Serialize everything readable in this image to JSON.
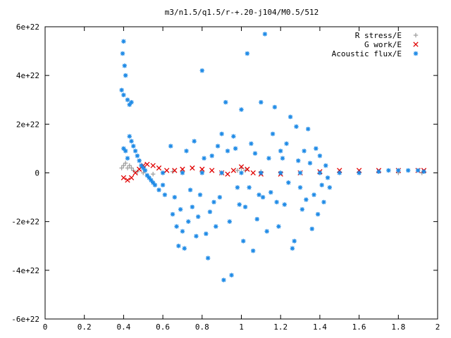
{
  "chart_data": {
    "type": "scatter",
    "title": "m3/n1.5/q1.5/r-+.20-j104/M0.5/512",
    "xlabel": "",
    "ylabel": "",
    "xlim": [
      0,
      2
    ],
    "ylim": [
      -6e+22,
      6e+22
    ],
    "x_ticks": [
      {
        "value": 0,
        "label": "0"
      },
      {
        "value": 0.2,
        "label": "0.2"
      },
      {
        "value": 0.4,
        "label": "0.4"
      },
      {
        "value": 0.6,
        "label": "0.6"
      },
      {
        "value": 0.8,
        "label": "0.8"
      },
      {
        "value": 1.0,
        "label": "1"
      },
      {
        "value": 1.2,
        "label": "1.2"
      },
      {
        "value": 1.4,
        "label": "1.4"
      },
      {
        "value": 1.6,
        "label": "1.6"
      },
      {
        "value": 1.8,
        "label": "1.8"
      },
      {
        "value": 2.0,
        "label": "2"
      }
    ],
    "y_ticks": [
      {
        "value": 6e+22,
        "label": "6e+22"
      },
      {
        "value": 4e+22,
        "label": "4e+22"
      },
      {
        "value": 2e+22,
        "label": "2e+22"
      },
      {
        "value": 0,
        "label": "0"
      },
      {
        "value": -2e+22,
        "label": "-2e+22"
      },
      {
        "value": -4e+22,
        "label": "-4e+22"
      },
      {
        "value": -6e+22,
        "label": "-6e+22"
      }
    ],
    "grid": false,
    "legend_position": "top-right",
    "series": [
      {
        "name": "R stress/E",
        "marker": "+",
        "color": "#a0a0a0",
        "points": [
          [
            0.39,
            2e+21
          ],
          [
            0.4,
            3e+21
          ],
          [
            0.41,
            4e+21
          ],
          [
            0.42,
            2e+21
          ],
          [
            0.43,
            3e+21
          ],
          [
            0.44,
            2e+21
          ],
          [
            0.45,
            1e+21
          ],
          [
            0.47,
            5e+20
          ],
          [
            0.5,
            0.0
          ],
          [
            0.55,
            -5e+20
          ],
          [
            0.6,
            0.0
          ],
          [
            0.65,
            5e+20
          ],
          [
            0.7,
            5e+20
          ],
          [
            0.8,
            5e+20
          ],
          [
            0.9,
            0.0
          ],
          [
            0.98,
            1e+21
          ],
          [
            1.0,
            2e+21
          ],
          [
            1.02,
            1e+21
          ],
          [
            1.1,
            5e+20
          ],
          [
            1.2,
            0.0
          ],
          [
            1.4,
            0.0
          ],
          [
            1.6,
            0.0
          ],
          [
            1.8,
            0.0
          ],
          [
            1.92,
            0.0
          ]
        ]
      },
      {
        "name": "G work/E",
        "marker": "x",
        "color": "#e00000",
        "points": [
          [
            0.4,
            -2e+21
          ],
          [
            0.42,
            -3e+21
          ],
          [
            0.44,
            -2e+21
          ],
          [
            0.46,
            0.0
          ],
          [
            0.48,
            1.5e+21
          ],
          [
            0.5,
            3e+21
          ],
          [
            0.52,
            3.5e+21
          ],
          [
            0.55,
            3e+21
          ],
          [
            0.58,
            2e+21
          ],
          [
            0.62,
            1e+21
          ],
          [
            0.66,
            1e+21
          ],
          [
            0.7,
            1.5e+21
          ],
          [
            0.75,
            2e+21
          ],
          [
            0.8,
            1.5e+21
          ],
          [
            0.85,
            1e+21
          ],
          [
            0.9,
            0.0
          ],
          [
            0.93,
            -5e+20
          ],
          [
            0.96,
            1e+21
          ],
          [
            1.0,
            2.5e+21
          ],
          [
            1.03,
            1.5e+21
          ],
          [
            1.06,
            0.0
          ],
          [
            1.1,
            -5e+20
          ],
          [
            1.2,
            -5e+20
          ],
          [
            1.3,
            0.0
          ],
          [
            1.4,
            5e+20
          ],
          [
            1.5,
            1e+21
          ],
          [
            1.6,
            1e+21
          ],
          [
            1.7,
            1e+21
          ],
          [
            1.8,
            1e+21
          ],
          [
            1.9,
            1e+21
          ],
          [
            1.93,
            1e+21
          ]
        ]
      },
      {
        "name": "Acoustic flux/E",
        "marker": "*",
        "color": "#1e8ae6",
        "points": [
          [
            0.395,
            4.9e+22
          ],
          [
            0.4,
            5.4e+22
          ],
          [
            0.405,
            4.4e+22
          ],
          [
            0.41,
            4e+22
          ],
          [
            0.39,
            3.4e+22
          ],
          [
            0.4,
            3.2e+22
          ],
          [
            0.42,
            3e+22
          ],
          [
            0.43,
            2.8e+22
          ],
          [
            0.44,
            2.9e+22
          ],
          [
            0.4,
            1e+22
          ],
          [
            0.41,
            9e+21
          ],
          [
            0.42,
            6e+21
          ],
          [
            0.43,
            1.5e+22
          ],
          [
            0.44,
            1.3e+22
          ],
          [
            0.45,
            1.1e+22
          ],
          [
            0.46,
            9e+21
          ],
          [
            0.47,
            7e+21
          ],
          [
            0.48,
            5e+21
          ],
          [
            0.49,
            3e+21
          ],
          [
            0.5,
            2e+21
          ],
          [
            0.51,
            1e+21
          ],
          [
            0.52,
            -1e+21
          ],
          [
            0.53,
            -2e+21
          ],
          [
            0.54,
            -3e+21
          ],
          [
            0.55,
            -4e+21
          ],
          [
            0.56,
            -5e+21
          ],
          [
            0.58,
            -7e+21
          ],
          [
            0.6,
            -5e+21
          ],
          [
            0.61,
            -9e+21
          ],
          [
            0.64,
            1.1e+22
          ],
          [
            0.65,
            -1.7e+22
          ],
          [
            0.66,
            -1e+22
          ],
          [
            0.67,
            -2.2e+22
          ],
          [
            0.68,
            -3e+22
          ],
          [
            0.69,
            -1.5e+22
          ],
          [
            0.7,
            -2.4e+22
          ],
          [
            0.71,
            -3.1e+22
          ],
          [
            0.72,
            9e+21
          ],
          [
            0.73,
            -2e+22
          ],
          [
            0.74,
            -7e+21
          ],
          [
            0.75,
            -1.4e+22
          ],
          [
            0.76,
            1.3e+22
          ],
          [
            0.77,
            -2.6e+22
          ],
          [
            0.78,
            -1.8e+22
          ],
          [
            0.79,
            -9e+21
          ],
          [
            0.8,
            4.2e+22
          ],
          [
            0.81,
            6e+21
          ],
          [
            0.82,
            -2.5e+22
          ],
          [
            0.83,
            -3.5e+22
          ],
          [
            0.84,
            -1.6e+22
          ],
          [
            0.85,
            7e+21
          ],
          [
            0.86,
            -1.2e+22
          ],
          [
            0.87,
            -2.2e+22
          ],
          [
            0.88,
            1.1e+22
          ],
          [
            0.89,
            -1e+22
          ],
          [
            0.9,
            1.6e+22
          ],
          [
            0.91,
            -4.4e+22
          ],
          [
            0.92,
            2.9e+22
          ],
          [
            0.93,
            9e+21
          ],
          [
            0.94,
            -2e+22
          ],
          [
            0.95,
            -4.2e+22
          ],
          [
            0.96,
            1.5e+22
          ],
          [
            0.97,
            1e+22
          ],
          [
            0.98,
            -6e+21
          ],
          [
            0.99,
            -1.3e+22
          ],
          [
            1.0,
            2.6e+22
          ],
          [
            1.01,
            -2.8e+22
          ],
          [
            1.02,
            -1.4e+22
          ],
          [
            1.03,
            4.9e+22
          ],
          [
            1.04,
            -6e+21
          ],
          [
            1.05,
            1.2e+22
          ],
          [
            1.06,
            -3.2e+22
          ],
          [
            1.07,
            8e+21
          ],
          [
            1.08,
            -1.9e+22
          ],
          [
            1.09,
            -9e+21
          ],
          [
            1.1,
            2.9e+22
          ],
          [
            1.11,
            -1e+22
          ],
          [
            1.12,
            5.7e+22
          ],
          [
            1.13,
            -2.4e+22
          ],
          [
            1.14,
            6e+21
          ],
          [
            1.15,
            -8e+21
          ],
          [
            1.16,
            1.6e+22
          ],
          [
            1.17,
            2.7e+22
          ],
          [
            1.18,
            -1.2e+22
          ],
          [
            1.19,
            -2.2e+22
          ],
          [
            1.2,
            9e+21
          ],
          [
            1.21,
            6e+21
          ],
          [
            1.22,
            -1.3e+22
          ],
          [
            1.23,
            1.2e+22
          ],
          [
            1.24,
            -4e+21
          ],
          [
            1.25,
            2.3e+22
          ],
          [
            1.26,
            -3.1e+22
          ],
          [
            1.27,
            -2.8e+22
          ],
          [
            1.28,
            1.9e+22
          ],
          [
            1.29,
            5e+21
          ],
          [
            1.3,
            -6e+21
          ],
          [
            1.31,
            -1.5e+22
          ],
          [
            1.32,
            9e+21
          ],
          [
            1.33,
            -1.1e+22
          ],
          [
            1.34,
            1.8e+22
          ],
          [
            1.35,
            4e+21
          ],
          [
            1.36,
            -2.3e+22
          ],
          [
            1.37,
            -9e+21
          ],
          [
            1.38,
            1e+22
          ],
          [
            1.39,
            -1.7e+22
          ],
          [
            1.4,
            7e+21
          ],
          [
            1.41,
            -5e+21
          ],
          [
            1.42,
            -1.2e+22
          ],
          [
            1.43,
            3e+21
          ],
          [
            1.44,
            -2e+21
          ],
          [
            1.45,
            -6e+21
          ],
          [
            0.6,
            0.0
          ],
          [
            0.7,
            0.0
          ],
          [
            0.8,
            0.0
          ],
          [
            0.9,
            0.0
          ],
          [
            1.0,
            0.0
          ],
          [
            1.1,
            0.0
          ],
          [
            1.2,
            0.0
          ],
          [
            1.3,
            0.0
          ],
          [
            1.4,
            0.0
          ],
          [
            1.5,
            0.0
          ],
          [
            1.6,
            0.0
          ],
          [
            1.7,
            5e+20
          ],
          [
            1.75,
            1e+21
          ],
          [
            1.8,
            1e+21
          ],
          [
            1.85,
            1e+21
          ],
          [
            1.9,
            1e+21
          ],
          [
            1.93,
            5e+20
          ]
        ]
      }
    ]
  }
}
